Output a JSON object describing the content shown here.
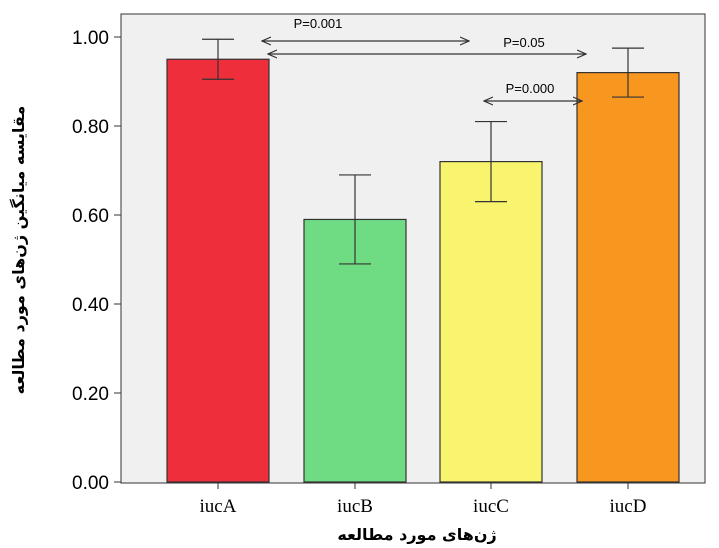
{
  "chart_data": {
    "type": "bar",
    "categories": [
      "iucA",
      "iucB",
      "iucC",
      "iucD"
    ],
    "values": [
      0.95,
      0.59,
      0.72,
      0.92
    ],
    "error_low": [
      0.905,
      0.49,
      0.63,
      0.865
    ],
    "error_high": [
      0.995,
      0.69,
      0.81,
      0.975
    ],
    "colors": [
      "#ee2e3a",
      "#6fdc84",
      "#f8f46e",
      "#f7971f"
    ],
    "xlabel": "ژن‌های مورد مطالعه",
    "ylabel": "مقایسه میانگین ژن‌های مورد مطالعه",
    "ylim": [
      0,
      1.0
    ],
    "yticks": [
      "0.00",
      "0.20",
      "0.40",
      "0.60",
      "0.80",
      "1.00"
    ],
    "grid": false,
    "background": "#f0f0f0",
    "annotations": [
      {
        "text": "P=0.001",
        "from": "iucA",
        "to": "iucC"
      },
      {
        "text": "P=0.05",
        "from": "iucA",
        "to": "iucD"
      },
      {
        "text": "P=0.000",
        "from": "iucC",
        "to": "iucD"
      }
    ]
  }
}
